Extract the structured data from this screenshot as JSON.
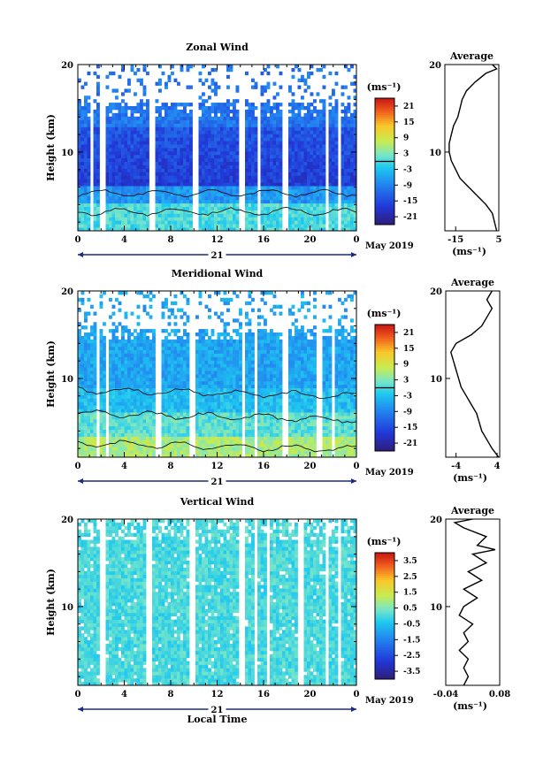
{
  "figure": {
    "date_label": "May 2019",
    "day_label": "21",
    "time_ticks": [
      "0",
      "4",
      "8",
      "12",
      "16",
      "20",
      "0"
    ],
    "height_ticks": [
      "10",
      "20"
    ],
    "ylabel": "Height (km)",
    "xlabel": "Local Time",
    "unit_label": "(ms⁻¹)"
  },
  "chart_data": [
    {
      "type": "heatmap",
      "title": "Zonal Wind",
      "xlabel": "",
      "ylabel": "Height (km)",
      "x_range_hours": [
        0,
        24
      ],
      "ylim": [
        1,
        20
      ],
      "colorbar": {
        "unit": "(ms⁻¹)",
        "ticks": [
          "21",
          "15",
          "9",
          "3",
          "-3",
          "-9",
          "-15",
          "-21"
        ],
        "range": [
          -24,
          24
        ]
      },
      "gap_columns_local_time": [
        [
          1.1,
          1.4
        ],
        [
          2.0,
          2.4
        ],
        [
          6.1,
          6.6
        ],
        [
          9.9,
          10.3
        ],
        [
          14.0,
          14.3
        ],
        [
          15.5,
          15.8
        ],
        [
          17.6,
          18.0
        ],
        [
          21.3,
          21.6
        ],
        [
          22.4,
          22.6
        ]
      ],
      "profile": {
        "title": "Average",
        "xlabel": "(ms⁻¹)",
        "x_ticks": [
          "-15",
          "5"
        ],
        "xlim": [
          -20,
          5
        ],
        "y_ticks": [
          "10",
          "20"
        ],
        "ylim": [
          1,
          20
        ],
        "points": [
          [
            4,
            1
          ],
          [
            3,
            2
          ],
          [
            2,
            3
          ],
          [
            -1,
            4
          ],
          [
            -5,
            5
          ],
          [
            -9,
            6
          ],
          [
            -13,
            7
          ],
          [
            -15,
            8
          ],
          [
            -17,
            9
          ],
          [
            -18,
            10
          ],
          [
            -18,
            11
          ],
          [
            -17,
            12
          ],
          [
            -16,
            13
          ],
          [
            -14,
            14
          ],
          [
            -13,
            15
          ],
          [
            -12,
            16
          ],
          [
            -10,
            17
          ],
          [
            -6,
            18
          ],
          [
            -1,
            19
          ],
          [
            4,
            19.5
          ],
          [
            2,
            20
          ]
        ]
      }
    },
    {
      "type": "heatmap",
      "title": "Meridional Wind",
      "xlabel": "",
      "ylabel": "Height (km)",
      "x_range_hours": [
        0,
        24
      ],
      "ylim": [
        1,
        20
      ],
      "colorbar": {
        "unit": "(ms⁻¹)",
        "ticks": [
          "21",
          "15",
          "9",
          "3",
          "-3",
          "-9",
          "-15",
          "-21"
        ],
        "range": [
          -24,
          24
        ]
      },
      "gap_columns_local_time": [
        [
          1.5,
          1.8
        ],
        [
          2.3,
          2.6
        ],
        [
          6.7,
          7.1
        ],
        [
          9.6,
          10.0
        ],
        [
          14.1,
          14.4
        ],
        [
          15.3,
          15.6
        ],
        [
          17.6,
          18.0
        ],
        [
          20.6,
          21.0
        ],
        [
          21.9,
          22.2
        ]
      ],
      "profile": {
        "title": "Average",
        "xlabel": "(ms⁻¹)",
        "x_ticks": [
          "-4",
          "4"
        ],
        "xlim": [
          -6,
          4.5
        ],
        "y_ticks": [
          "10",
          "20"
        ],
        "ylim": [
          1,
          20
        ],
        "points": [
          [
            4.3,
            1
          ],
          [
            3,
            2
          ],
          [
            2,
            3
          ],
          [
            1,
            4
          ],
          [
            0.5,
            5
          ],
          [
            0,
            6
          ],
          [
            -1,
            7
          ],
          [
            -2,
            8
          ],
          [
            -3,
            9
          ],
          [
            -3.5,
            10
          ],
          [
            -4,
            11
          ],
          [
            -4.5,
            12
          ],
          [
            -5,
            13
          ],
          [
            -4,
            14
          ],
          [
            -1,
            15
          ],
          [
            1,
            16
          ],
          [
            2,
            17
          ],
          [
            3,
            18
          ],
          [
            2,
            19
          ],
          [
            3,
            20
          ]
        ]
      }
    },
    {
      "type": "heatmap",
      "title": "Vertical Wind",
      "xlabel": "Local Time",
      "ylabel": "Height (km)",
      "x_range_hours": [
        0,
        24
      ],
      "ylim": [
        1,
        20
      ],
      "colorbar": {
        "unit": "(ms⁻¹)",
        "ticks": [
          "3.5",
          "2.5",
          "1.5",
          "0.5",
          "-0.5",
          "-1.5",
          "-2.5",
          "-3.5"
        ],
        "range": [
          -4,
          4
        ]
      },
      "gap_columns_local_time": [
        [
          1.8,
          2.3
        ],
        [
          6.0,
          6.5
        ],
        [
          9.7,
          10.0
        ],
        [
          14.0,
          14.3
        ],
        [
          15.3,
          15.6
        ],
        [
          16.2,
          16.5
        ],
        [
          19.0,
          19.4
        ],
        [
          21.3,
          21.6
        ],
        [
          22.4,
          22.7
        ]
      ],
      "profile": {
        "title": "Average",
        "xlabel": "(ms⁻¹)",
        "x_ticks": [
          "-0.04",
          "0.08"
        ],
        "xlim": [
          -0.04,
          0.08
        ],
        "y_ticks": [
          "10",
          "20"
        ],
        "ylim": [
          1,
          20
        ],
        "points": [
          [
            0.0,
            1
          ],
          [
            0.01,
            2
          ],
          [
            0.0,
            3
          ],
          [
            0.01,
            4
          ],
          [
            -0.01,
            5
          ],
          [
            0.01,
            6
          ],
          [
            0.0,
            7
          ],
          [
            0.02,
            8
          ],
          [
            -0.01,
            9
          ],
          [
            0.0,
            10
          ],
          [
            0.03,
            11
          ],
          [
            0.0,
            12
          ],
          [
            0.04,
            13
          ],
          [
            0.01,
            14
          ],
          [
            0.05,
            15
          ],
          [
            0.02,
            16
          ],
          [
            0.07,
            16.5
          ],
          [
            0.03,
            17
          ],
          [
            0.05,
            18
          ],
          [
            0.0,
            19
          ],
          [
            -0.02,
            19.6
          ],
          [
            0.02,
            20
          ]
        ]
      }
    }
  ]
}
